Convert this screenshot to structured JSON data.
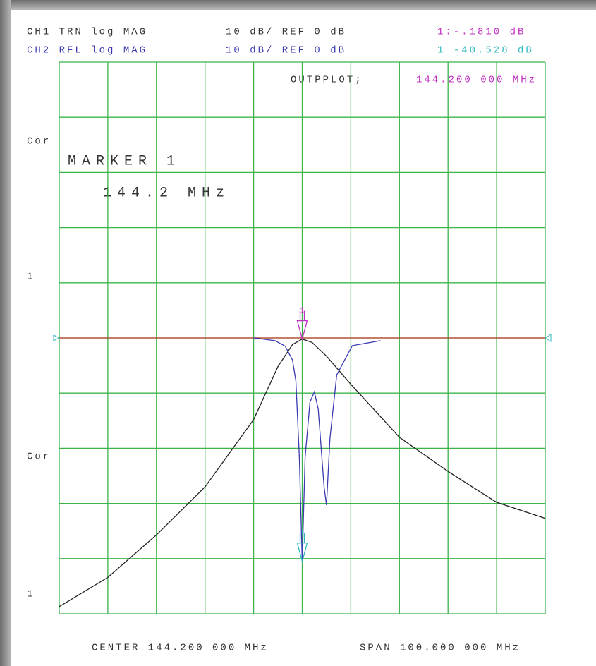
{
  "chart_data": {
    "type": "line",
    "header": [
      [
        "CH1 TRN log MAG",
        "10 dB/ REF 0 dB",
        "1:-.1810 dB"
      ],
      [
        "CH2 RFL log MAG",
        "10 dB/ REF 0 dB",
        "1 -40.528 dB"
      ]
    ],
    "command": "OUTPPLOT;",
    "marker_readout": "144.200 000 MHz",
    "marker_title": "MARKER 1",
    "marker_freq": "144.2 MHz",
    "marker_x": 144.2,
    "marker_label": "1",
    "side_labels": [
      "Cor",
      "1",
      "Cor",
      "1"
    ],
    "footer": [
      "CENTER 144.200 000 MHz",
      "SPAN 100.000 000 MHz"
    ],
    "xlim": [
      94.2,
      194.2
    ],
    "ylim": [
      -50,
      50
    ],
    "xticks": [
      94.2,
      104.2,
      114.2,
      124.2,
      134.2,
      144.2,
      154.2,
      164.2,
      174.2,
      184.2,
      194.2
    ],
    "yticks": [
      -50,
      -40,
      -30,
      -20,
      -10,
      0,
      10,
      20,
      30,
      40,
      50
    ],
    "grid": true,
    "reference_line": {
      "value": 0,
      "color": "#c0392b"
    },
    "series": [
      {
        "name": "CH1",
        "color": "#222222",
        "x": [
          94.2,
          104.2,
          114.2,
          124.2,
          134.2,
          139.2,
          142.2,
          144.2,
          146.2,
          149.2,
          154.2,
          164.2,
          174.2,
          184.2,
          194.2
        ],
        "values": [
          -48.7,
          -43.4,
          -35.7,
          -27,
          -14.8,
          -5.2,
          -1.2,
          -0.2,
          -0.8,
          -3.3,
          -8.4,
          -18,
          -24.2,
          -29.8,
          -32.7
        ]
      },
      {
        "name": "CH2",
        "color": "#3a3ab0",
        "x": [
          134.2,
          138.6,
          140.7,
          142.2,
          142.9,
          143.6,
          144.2,
          144.8,
          145.8,
          146.7,
          147.5,
          148.7,
          149.2,
          149.9,
          151.3,
          154.5,
          160.3
        ],
        "values": [
          0,
          -0.5,
          -1.5,
          -4,
          -7.8,
          -21.6,
          -40.5,
          -21.6,
          -11.6,
          -9.8,
          -12.9,
          -27,
          -30.3,
          -18.2,
          -6.7,
          -1.4,
          -0.5
        ]
      }
    ]
  }
}
